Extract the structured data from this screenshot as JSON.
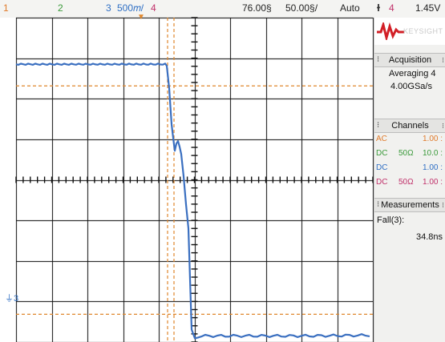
{
  "topbar": {
    "ch1_label": "1",
    "ch2_label": "2",
    "ch3_label": "3",
    "ch3_scale": "500𝑚/",
    "ch4_label": "4",
    "time_position": "76.00§",
    "time_scale": "50.00§/",
    "run_mode": "Auto",
    "trigger_icon": "rising-edge-icon",
    "trigger_channel": "4",
    "trigger_level": "1.45V"
  },
  "colors": {
    "ch1": "#e07a2a",
    "ch2": "#3a9a3a",
    "ch3": "#2f6fc4",
    "ch4": "#c0306a",
    "grid": "#111111",
    "trace": "#3a6fc0",
    "cursor": "#e0872c",
    "brand": "#d21f26"
  },
  "screen": {
    "ground_marker": "3",
    "trigger_marker": "▼"
  },
  "panel": {
    "logo_text": "KEYSIGHT",
    "acquisition": {
      "header": "Acquisition",
      "mode": "Averaging 4",
      "rate": "4.00GSa/s"
    },
    "channels": {
      "header": "Channels",
      "rows": [
        {
          "coupling": "AC",
          "impedance": "",
          "scale": "1.00 :",
          "color": "#e07a2a"
        },
        {
          "coupling": "DC",
          "impedance": "50Ω",
          "scale": "10.0 :",
          "color": "#3a9a3a"
        },
        {
          "coupling": "DC",
          "impedance": "",
          "scale": "1.00 :",
          "color": "#2f6fc4"
        },
        {
          "coupling": "DC",
          "impedance": "50Ω",
          "scale": "1.00 :",
          "color": "#c0306a"
        }
      ]
    },
    "measurements": {
      "header": "Measurements",
      "label": "Fall(3):",
      "value": "34.8ns"
    }
  },
  "waveform": {
    "channel": "3",
    "edge": "falling",
    "high_level_divisions_above_center": 2.85,
    "low_level_divisions_below_center": 3.85,
    "fall_time_ns": 34.8
  }
}
